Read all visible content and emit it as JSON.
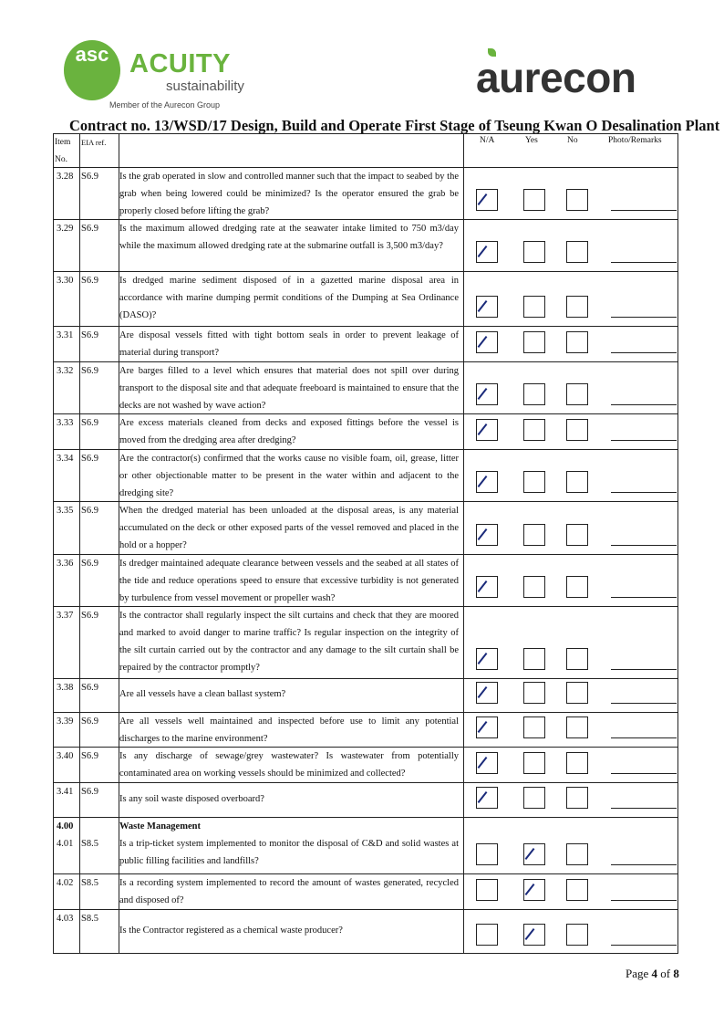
{
  "logos": {
    "acuity_mark": "asc",
    "acuity_name": "ACUITY",
    "acuity_sub": "sustainability",
    "acuity_member": "Member of the Aurecon Group",
    "aurecon": "aurecon",
    "brand_green": "#6ab33e"
  },
  "title": "Contract no.  13/WSD/17 Design, Build and Operate First Stage of Tseung Kwan O Desalination Plant",
  "header": {
    "item_no": "Item No.",
    "eia_ref": "EIA ref.",
    "na": "N/A",
    "yes": "Yes",
    "no": "No",
    "remarks": "Photo/Remarks"
  },
  "rows": [
    {
      "item": "3.28",
      "eia": "S6.9",
      "question": "Is the grab operated in slow and controlled manner such that the impact to seabed by the grab when being lowered could be minimized? Is the operator ensured the grab be properly closed before lifting the grab?",
      "answer": "N/A"
    },
    {
      "item": "3.29",
      "eia": "S6.9",
      "question": "Is the maximum allowed dredging rate at the seawater intake limited to 750 m3/day while the maximum allowed dredging rate at the submarine outfall is 3,500 m3/day?",
      "answer": "N/A"
    },
    {
      "item": "3.30",
      "eia": "S6.9",
      "question": "Is dredged marine sediment disposed of in a gazetted marine disposal area in accordance with marine dumping permit conditions of the Dumping at Sea Ordinance (DASO)?",
      "answer": "N/A"
    },
    {
      "item": "3.31",
      "eia": "S6.9",
      "question": "Are disposal vessels fitted with tight bottom seals in order to prevent leakage of material during transport?",
      "answer": "N/A"
    },
    {
      "item": "3.32",
      "eia": "S6.9",
      "question": "Are barges filled to a level which ensures that material does not spill over during transport to the disposal site and that adequate freeboard is maintained to ensure that the decks are not washed by wave action?",
      "answer": "N/A"
    },
    {
      "item": "3.33",
      "eia": "S6.9",
      "question": "Are excess materials cleaned from decks and exposed fittings before the vessel is moved from the dredging area after dredging?",
      "answer": "N/A"
    },
    {
      "item": "3.34",
      "eia": "S6.9",
      "question": "Are the contractor(s) confirmed that the works cause no visible foam, oil, grease, litter or other objectionable matter to be present in the water within and adjacent to the dredging site?",
      "answer": "N/A"
    },
    {
      "item": "3.35",
      "eia": "S6.9",
      "question": "When the dredged material has been unloaded at the disposal areas, is any material accumulated on the deck or other exposed parts of the vessel removed and placed in the hold or a hopper?",
      "answer": "N/A"
    },
    {
      "item": "3.36",
      "eia": "S6.9",
      "question": "Is dredger maintained adequate clearance between vessels and the seabed at all states of the tide and reduce operations speed to ensure that excessive turbidity is not generated by turbulence from vessel movement or propeller wash?",
      "answer": "N/A"
    },
    {
      "item": "3.37",
      "eia": "S6.9",
      "question": "Is the contractor shall regularly inspect the silt curtains and check that they are moored and marked to avoid danger to marine traffic? Is regular inspection on the integrity of the silt curtain carried out by the contractor and any damage to the silt curtain shall be repaired by the contractor promptly?",
      "answer": "N/A"
    },
    {
      "item": "3.38",
      "eia": "S6.9",
      "question": "Are all vessels have a clean ballast system?",
      "answer": "N/A"
    },
    {
      "item": "3.39",
      "eia": "S6.9",
      "question": "Are all vessels well maintained and inspected before use to limit any potential discharges to the marine environment?",
      "answer": "N/A"
    },
    {
      "item": "3.40",
      "eia": "S6.9",
      "question": "Is any discharge of sewage/grey wastewater? Is wastewater from potentially contaminated area on working vessels should be minimized and collected?",
      "answer": "N/A"
    },
    {
      "item": "3.41",
      "eia": "S6.9",
      "question": "Is any soil waste disposed overboard?",
      "answer": "N/A"
    },
    {
      "section": "4.00",
      "section_title": "Waste Management",
      "item": "4.01",
      "eia": "S8.5",
      "question": "Is a trip-ticket system implemented to monitor the disposal of C&D and solid wastes at public filling facilities and landfills?",
      "answer": "Yes"
    },
    {
      "item": "4.02",
      "eia": "S8.5",
      "question": "Is a recording system implemented to record the amount of wastes generated, recycled and disposed of?",
      "answer": "Yes"
    },
    {
      "item": "4.03",
      "eia": "S8.5",
      "question": "Is the Contractor registered as a chemical waste producer?",
      "answer": "Yes"
    }
  ],
  "footer": {
    "page_prefix": "Page ",
    "page": "4",
    "of": " of ",
    "total": "8"
  }
}
